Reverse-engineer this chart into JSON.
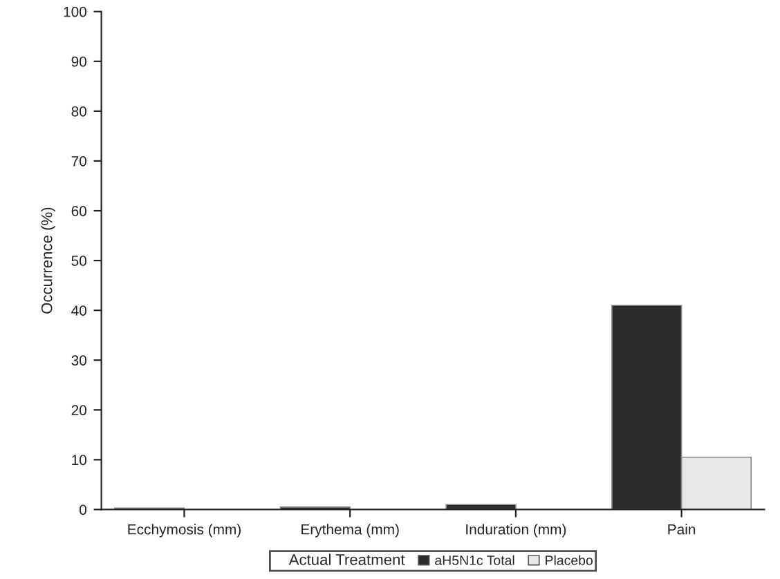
{
  "chart_data": {
    "type": "bar",
    "ylabel": "Occurrence (%)",
    "legend_title": "Actual Treatment",
    "categories": [
      "Ecchymosis (mm)",
      "Erythema (mm)",
      "Induration (mm)",
      "Pain"
    ],
    "series": [
      {
        "name": "aH5N1c Total",
        "color": "#2b2b2b",
        "values": [
          0.3,
          0.5,
          1,
          41
        ]
      },
      {
        "name": "Placebo",
        "color": "#e8e8e8",
        "values": [
          null,
          null,
          null,
          10.5
        ]
      }
    ],
    "ylim": [
      0,
      100
    ],
    "yticks": [
      0,
      10,
      20,
      30,
      40,
      50,
      60,
      70,
      80,
      90,
      100
    ],
    "grid": false,
    "legend": "bottom"
  }
}
